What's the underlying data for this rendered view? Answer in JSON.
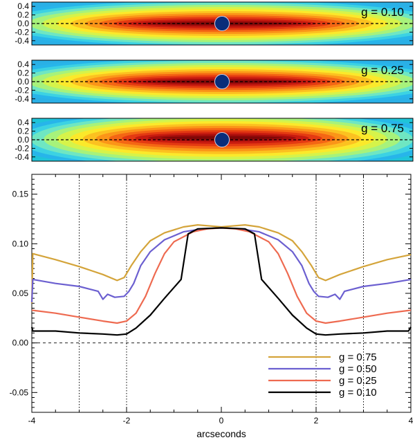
{
  "colors": {
    "black": "#000000",
    "g075": "#d4a43a",
    "g050": "#6b5fd0",
    "g025": "#ee6a50",
    "g010": "#000000",
    "disk": "#0a2d7a"
  },
  "maps": [
    {
      "label": "g = 0.10",
      "g": 0.1,
      "yticks": [
        "0.4",
        "0.2",
        "0.0",
        "-0.2",
        "-0.4"
      ]
    },
    {
      "label": "g = 0.25",
      "g": 0.25,
      "yticks": [
        "0.4",
        "0.2",
        "0.0",
        "-0.2",
        "-0.4"
      ]
    },
    {
      "label": "g = 0.75",
      "g": 0.75,
      "yticks": [
        "0.4",
        "0.2",
        "0.0",
        "-0.2",
        "-0.4"
      ]
    }
  ],
  "chart_data": {
    "type": "line",
    "xlabel": "arcseconds",
    "ylabel": "",
    "xlim": [
      -4,
      4
    ],
    "ylim": [
      -0.07,
      0.17
    ],
    "xticks": [
      -4,
      -2,
      0,
      2,
      4
    ],
    "xtick_labels": [
      "-4",
      "-2",
      "0",
      "2",
      "4"
    ],
    "yticks": [
      0.15,
      0.1,
      0.05,
      0.0,
      -0.05
    ],
    "ytick_labels": [
      "0.15",
      "0.10",
      "0.05",
      "0.00",
      "-0.05"
    ],
    "vlines": [
      -3,
      -2,
      2,
      3
    ],
    "hline": 0.0,
    "legend_position": "bottom-right",
    "series": [
      {
        "name": "g = 0.75",
        "color": "#d4a43a",
        "points": [
          [
            -4,
            0.04
          ],
          [
            -3.98,
            0.09
          ],
          [
            -3.5,
            0.084
          ],
          [
            -3,
            0.077
          ],
          [
            -2.5,
            0.069
          ],
          [
            -2.2,
            0.063
          ],
          [
            -2.05,
            0.066
          ],
          [
            -1.9,
            0.078
          ],
          [
            -1.7,
            0.092
          ],
          [
            -1.5,
            0.103
          ],
          [
            -1.2,
            0.111
          ],
          [
            -0.8,
            0.117
          ],
          [
            -0.5,
            0.119
          ],
          [
            0,
            0.117
          ],
          [
            0.5,
            0.119
          ],
          [
            0.8,
            0.117
          ],
          [
            1.2,
            0.111
          ],
          [
            1.5,
            0.103
          ],
          [
            1.7,
            0.092
          ],
          [
            1.9,
            0.078
          ],
          [
            2.05,
            0.066
          ],
          [
            2.2,
            0.063
          ],
          [
            2.5,
            0.069
          ],
          [
            3,
            0.077
          ],
          [
            3.5,
            0.084
          ],
          [
            4,
            0.089
          ]
        ]
      },
      {
        "name": "g = 0.50",
        "color": "#6b5fd0",
        "points": [
          [
            -4,
            0.041
          ],
          [
            -3.98,
            0.064
          ],
          [
            -3.5,
            0.06
          ],
          [
            -3,
            0.057
          ],
          [
            -2.6,
            0.052
          ],
          [
            -2.5,
            0.044
          ],
          [
            -2.4,
            0.049
          ],
          [
            -2.25,
            0.046
          ],
          [
            -2.05,
            0.047
          ],
          [
            -1.95,
            0.052
          ],
          [
            -1.85,
            0.06
          ],
          [
            -1.7,
            0.078
          ],
          [
            -1.5,
            0.092
          ],
          [
            -1.2,
            0.104
          ],
          [
            -0.8,
            0.112
          ],
          [
            -0.4,
            0.115
          ],
          [
            0,
            0.116
          ],
          [
            0.4,
            0.115
          ],
          [
            0.8,
            0.112
          ],
          [
            1.2,
            0.104
          ],
          [
            1.5,
            0.092
          ],
          [
            1.7,
            0.078
          ],
          [
            1.85,
            0.06
          ],
          [
            1.95,
            0.052
          ],
          [
            2.05,
            0.047
          ],
          [
            2.25,
            0.046
          ],
          [
            2.4,
            0.049
          ],
          [
            2.5,
            0.044
          ],
          [
            2.6,
            0.052
          ],
          [
            3,
            0.057
          ],
          [
            3.5,
            0.06
          ],
          [
            4,
            0.064
          ]
        ]
      },
      {
        "name": "g = 0.25",
        "color": "#ee6a50",
        "points": [
          [
            -4,
            0.033
          ],
          [
            -3.5,
            0.03
          ],
          [
            -3,
            0.026
          ],
          [
            -2.5,
            0.022
          ],
          [
            -2.2,
            0.02
          ],
          [
            -2.0,
            0.022
          ],
          [
            -1.8,
            0.03
          ],
          [
            -1.6,
            0.047
          ],
          [
            -1.4,
            0.07
          ],
          [
            -1.2,
            0.09
          ],
          [
            -1.0,
            0.102
          ],
          [
            -0.6,
            0.112
          ],
          [
            -0.3,
            0.115
          ],
          [
            0,
            0.116
          ],
          [
            0.3,
            0.115
          ],
          [
            0.6,
            0.112
          ],
          [
            1.0,
            0.102
          ],
          [
            1.2,
            0.09
          ],
          [
            1.4,
            0.07
          ],
          [
            1.6,
            0.047
          ],
          [
            1.8,
            0.03
          ],
          [
            2.0,
            0.022
          ],
          [
            2.2,
            0.02
          ],
          [
            2.5,
            0.022
          ],
          [
            3,
            0.026
          ],
          [
            3.5,
            0.03
          ],
          [
            4,
            0.033
          ]
        ]
      },
      {
        "name": "g = 0.10",
        "color": "#000000",
        "points": [
          [
            -4,
            0.016
          ],
          [
            -3.98,
            0.012
          ],
          [
            -3.5,
            0.012
          ],
          [
            -3,
            0.01
          ],
          [
            -2.5,
            0.009
          ],
          [
            -2.2,
            0.008
          ],
          [
            -2.0,
            0.009
          ],
          [
            -1.8,
            0.015
          ],
          [
            -1.5,
            0.028
          ],
          [
            -1.2,
            0.045
          ],
          [
            -0.85,
            0.064
          ],
          [
            -0.7,
            0.11
          ],
          [
            -0.5,
            0.115
          ],
          [
            0,
            0.116
          ],
          [
            0.5,
            0.115
          ],
          [
            0.7,
            0.11
          ],
          [
            0.85,
            0.064
          ],
          [
            1.2,
            0.045
          ],
          [
            1.5,
            0.028
          ],
          [
            1.8,
            0.015
          ],
          [
            2.0,
            0.009
          ],
          [
            2.2,
            0.008
          ],
          [
            2.5,
            0.009
          ],
          [
            3,
            0.01
          ],
          [
            3.5,
            0.012
          ],
          [
            3.95,
            0.012
          ],
          [
            4,
            0.016
          ]
        ]
      }
    ]
  }
}
